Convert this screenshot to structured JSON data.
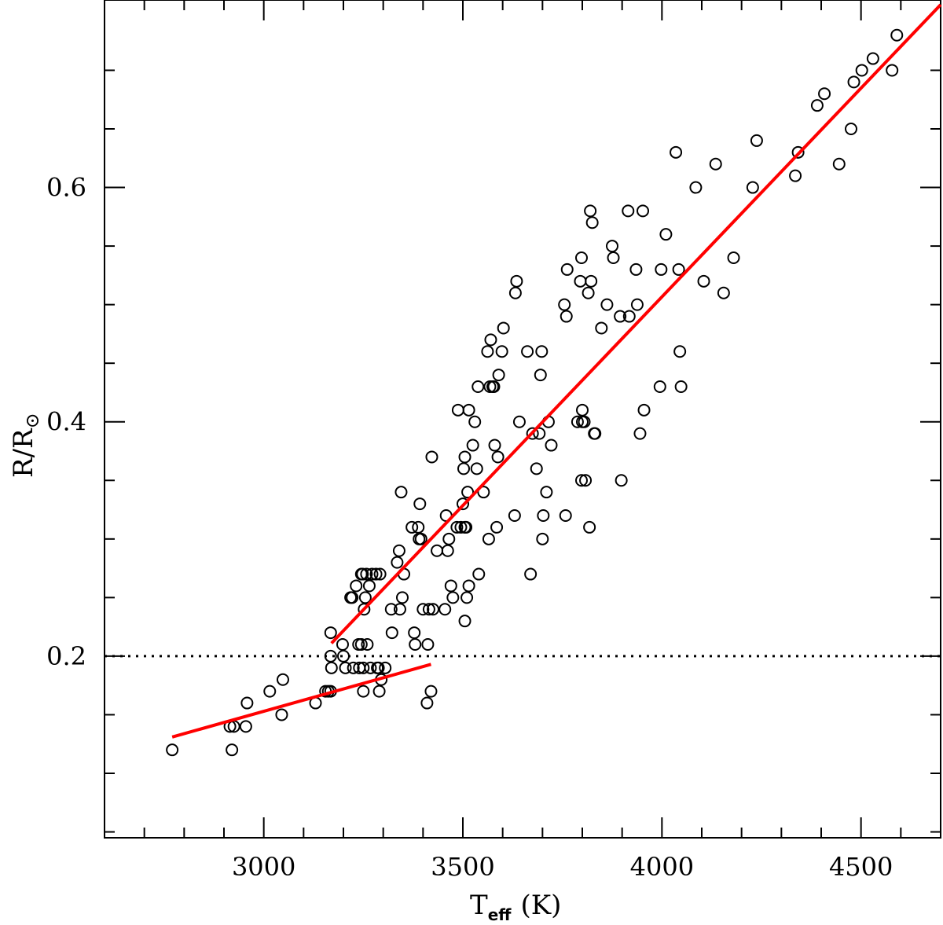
{
  "chart_data": {
    "type": "scatter",
    "title": "",
    "xlabel": {
      "main": "T",
      "sub": "eff",
      "unit": "(K)"
    },
    "ylabel": {
      "main": "R/R",
      "sub": "⊙"
    },
    "xlim": [
      2600,
      4700
    ],
    "ylim": [
      0.045,
      0.76
    ],
    "x_ticks": [
      3000,
      3500,
      4000,
      4500
    ],
    "x_tick_labels": [
      "3000",
      "3500",
      "4000",
      "4500"
    ],
    "y_ticks": [
      0.2,
      0.4,
      0.6
    ],
    "y_tick_labels": [
      "0.2",
      "0.4",
      "0.6"
    ],
    "grid": false,
    "reference_line": {
      "y": 0.2,
      "style": "dotted",
      "color": "#000000"
    },
    "fit_lines": [
      {
        "x": [
          2770,
          3420
        ],
        "y": [
          0.131,
          0.193
        ],
        "color": "#ff0000"
      },
      {
        "x": [
          3170,
          4700
        ],
        "y": [
          0.211,
          0.756
        ],
        "color": "#ff0000"
      }
    ],
    "points": [
      [
        2770,
        0.12
      ],
      [
        2915,
        0.14
      ],
      [
        2925,
        0.14
      ],
      [
        2920,
        0.12
      ],
      [
        2955,
        0.14
      ],
      [
        2958,
        0.16
      ],
      [
        3015,
        0.17
      ],
      [
        3045,
        0.15
      ],
      [
        3048,
        0.18
      ],
      [
        3130,
        0.16
      ],
      [
        3155,
        0.17
      ],
      [
        3162,
        0.17
      ],
      [
        3168,
        0.17
      ],
      [
        3168,
        0.22
      ],
      [
        3168,
        0.2
      ],
      [
        3170,
        0.19
      ],
      [
        3198,
        0.21
      ],
      [
        3200,
        0.2
      ],
      [
        3205,
        0.19
      ],
      [
        3218,
        0.25
      ],
      [
        3222,
        0.25
      ],
      [
        3225,
        0.19
      ],
      [
        3232,
        0.26
      ],
      [
        3238,
        0.21
      ],
      [
        3240,
        0.19
      ],
      [
        3245,
        0.21
      ],
      [
        3245,
        0.27
      ],
      [
        3248,
        0.27
      ],
      [
        3250,
        0.19
      ],
      [
        3250,
        0.17
      ],
      [
        3252,
        0.24
      ],
      [
        3255,
        0.25
      ],
      [
        3258,
        0.27
      ],
      [
        3260,
        0.21
      ],
      [
        3265,
        0.26
      ],
      [
        3268,
        0.19
      ],
      [
        3272,
        0.27
      ],
      [
        3282,
        0.27
      ],
      [
        3285,
        0.19
      ],
      [
        3288,
        0.19
      ],
      [
        3290,
        0.17
      ],
      [
        3292,
        0.27
      ],
      [
        3295,
        0.18
      ],
      [
        3305,
        0.19
      ],
      [
        3320,
        0.24
      ],
      [
        3322,
        0.22
      ],
      [
        3335,
        0.28
      ],
      [
        3340,
        0.29
      ],
      [
        3342,
        0.24
      ],
      [
        3345,
        0.34
      ],
      [
        3348,
        0.25
      ],
      [
        3352,
        0.27
      ],
      [
        3372,
        0.31
      ],
      [
        3378,
        0.22
      ],
      [
        3380,
        0.21
      ],
      [
        3388,
        0.31
      ],
      [
        3390,
        0.3
      ],
      [
        3392,
        0.33
      ],
      [
        3395,
        0.3
      ],
      [
        3400,
        0.24
      ],
      [
        3410,
        0.16
      ],
      [
        3412,
        0.21
      ],
      [
        3415,
        0.24
      ],
      [
        3420,
        0.17
      ],
      [
        3422,
        0.37
      ],
      [
        3425,
        0.24
      ],
      [
        3435,
        0.29
      ],
      [
        3455,
        0.24
      ],
      [
        3458,
        0.32
      ],
      [
        3462,
        0.29
      ],
      [
        3465,
        0.3
      ],
      [
        3470,
        0.26
      ],
      [
        3475,
        0.25
      ],
      [
        3485,
        0.31
      ],
      [
        3488,
        0.41
      ],
      [
        3495,
        0.31
      ],
      [
        3500,
        0.33
      ],
      [
        3502,
        0.36
      ],
      [
        3505,
        0.31
      ],
      [
        3505,
        0.23
      ],
      [
        3505,
        0.37
      ],
      [
        3508,
        0.31
      ],
      [
        3510,
        0.25
      ],
      [
        3512,
        0.34
      ],
      [
        3515,
        0.26
      ],
      [
        3515,
        0.41
      ],
      [
        3525,
        0.38
      ],
      [
        3530,
        0.4
      ],
      [
        3535,
        0.36
      ],
      [
        3538,
        0.43
      ],
      [
        3540,
        0.27
      ],
      [
        3552,
        0.34
      ],
      [
        3562,
        0.46
      ],
      [
        3565,
        0.3
      ],
      [
        3568,
        0.43
      ],
      [
        3570,
        0.47
      ],
      [
        3575,
        0.43
      ],
      [
        3578,
        0.43
      ],
      [
        3580,
        0.38
      ],
      [
        3585,
        0.31
      ],
      [
        3588,
        0.37
      ],
      [
        3590,
        0.44
      ],
      [
        3598,
        0.46
      ],
      [
        3602,
        0.48
      ],
      [
        3630,
        0.32
      ],
      [
        3632,
        0.51
      ],
      [
        3635,
        0.52
      ],
      [
        3642,
        0.4
      ],
      [
        3662,
        0.46
      ],
      [
        3670,
        0.27
      ],
      [
        3675,
        0.39
      ],
      [
        3685,
        0.36
      ],
      [
        3692,
        0.39
      ],
      [
        3695,
        0.44
      ],
      [
        3698,
        0.46
      ],
      [
        3700,
        0.3
      ],
      [
        3702,
        0.32
      ],
      [
        3710,
        0.34
      ],
      [
        3715,
        0.4
      ],
      [
        3722,
        0.38
      ],
      [
        3755,
        0.5
      ],
      [
        3758,
        0.32
      ],
      [
        3760,
        0.49
      ],
      [
        3762,
        0.53
      ],
      [
        3788,
        0.4
      ],
      [
        3795,
        0.52
      ],
      [
        3798,
        0.54
      ],
      [
        3798,
        0.35
      ],
      [
        3800,
        0.4
      ],
      [
        3800,
        0.41
      ],
      [
        3805,
        0.4
      ],
      [
        3808,
        0.35
      ],
      [
        3815,
        0.51
      ],
      [
        3818,
        0.31
      ],
      [
        3820,
        0.58
      ],
      [
        3822,
        0.52
      ],
      [
        3825,
        0.57
      ],
      [
        3830,
        0.39
      ],
      [
        3832,
        0.39
      ],
      [
        3848,
        0.48
      ],
      [
        3862,
        0.5
      ],
      [
        3875,
        0.55
      ],
      [
        3878,
        0.54
      ],
      [
        3895,
        0.49
      ],
      [
        3898,
        0.35
      ],
      [
        3915,
        0.58
      ],
      [
        3918,
        0.49
      ],
      [
        3935,
        0.53
      ],
      [
        3938,
        0.5
      ],
      [
        3945,
        0.39
      ],
      [
        3952,
        0.58
      ],
      [
        3955,
        0.41
      ],
      [
        3995,
        0.43
      ],
      [
        3998,
        0.53
      ],
      [
        4010,
        0.56
      ],
      [
        4035,
        0.63
      ],
      [
        4042,
        0.53
      ],
      [
        4045,
        0.46
      ],
      [
        4048,
        0.43
      ],
      [
        4085,
        0.6
      ],
      [
        4105,
        0.52
      ],
      [
        4135,
        0.62
      ],
      [
        4155,
        0.51
      ],
      [
        4180,
        0.54
      ],
      [
        4228,
        0.6
      ],
      [
        4238,
        0.64
      ],
      [
        4335,
        0.61
      ],
      [
        4342,
        0.63
      ],
      [
        4390,
        0.67
      ],
      [
        4408,
        0.68
      ],
      [
        4445,
        0.62
      ],
      [
        4475,
        0.65
      ],
      [
        4482,
        0.69
      ],
      [
        4502,
        0.7
      ],
      [
        4530,
        0.71
      ],
      [
        4578,
        0.7
      ],
      [
        4590,
        0.73
      ]
    ]
  }
}
